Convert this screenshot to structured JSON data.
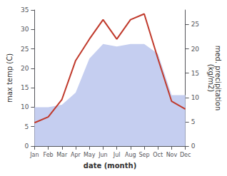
{
  "chart_data": {
    "type": "line",
    "categories": [
      "Jan",
      "Feb",
      "Mar",
      "Apr",
      "May",
      "Jun",
      "Jul",
      "Aug",
      "Sep",
      "Oct",
      "Nov",
      "Dec"
    ],
    "series": [
      {
        "type": "area",
        "color": "#c5cef0",
        "axis": "y2",
        "values": [
          8.0,
          8.0,
          8.5,
          11.0,
          18.0,
          21.0,
          20.5,
          21.0,
          21.0,
          19.0,
          10.5,
          10.5
        ]
      },
      {
        "type": "line",
        "color": "#c0392b",
        "values": [
          6.0,
          7.5,
          12.0,
          22.0,
          27.5,
          32.5,
          27.5,
          32.5,
          34.0,
          22.5,
          11.5,
          9.5
        ]
      }
    ],
    "xlabel": "date (month)",
    "ylabel": "max temp (C)",
    "y2label": "med. precipitation\n(kg/m2)",
    "ylim": [
      0,
      35
    ],
    "yticks": [
      0,
      5,
      10,
      15,
      20,
      25,
      30,
      35
    ],
    "y2lim": [
      0,
      28
    ],
    "y2ticks": [
      0,
      5,
      10,
      15,
      20,
      25
    ],
    "grid": false
  }
}
